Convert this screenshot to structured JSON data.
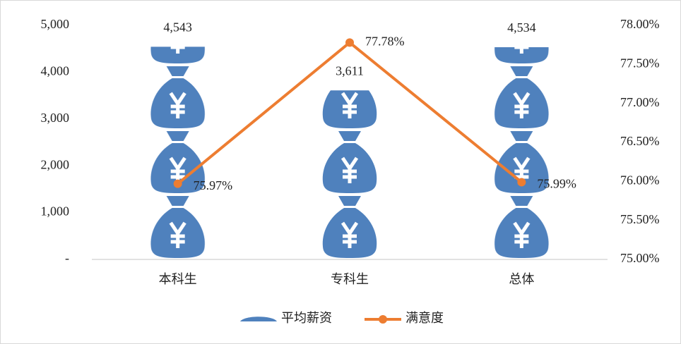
{
  "chart_data": {
    "type": "combo",
    "categories": [
      "本科生",
      "专科生",
      "总体"
    ],
    "series": [
      {
        "name": "平均薪资",
        "type": "bar",
        "color": "#4f81bd",
        "values": [
          4543,
          3611,
          4534
        ],
        "value_labels": [
          "4,543",
          "3,611",
          "4,534"
        ]
      },
      {
        "name": "满意度",
        "type": "line",
        "axis": "y2",
        "color": "#ed7d31",
        "values": [
          75.97,
          77.78,
          75.99
        ],
        "value_labels": [
          "75.97%",
          "77.78%",
          "75.99%"
        ]
      }
    ],
    "ylim": [
      0,
      5000
    ],
    "yticks": [
      {
        "value": 0,
        "label": "-"
      },
      {
        "value": 1000,
        "label": "1,000"
      },
      {
        "value": 2000,
        "label": "2,000"
      },
      {
        "value": 3000,
        "label": "3,000"
      },
      {
        "value": 4000,
        "label": "4,000"
      },
      {
        "value": 5000,
        "label": "5,000"
      }
    ],
    "y2lim": [
      75,
      78
    ],
    "y2ticks": [
      {
        "value": 75,
        "label": "75.00%"
      },
      {
        "value": 75.5,
        "label": "75.50%"
      },
      {
        "value": 76,
        "label": "76.00%"
      },
      {
        "value": 76.5,
        "label": "76.50%"
      },
      {
        "value": 77,
        "label": "77.00%"
      },
      {
        "value": 77.5,
        "label": "77.50%"
      },
      {
        "value": 78,
        "label": "78.00%"
      }
    ],
    "legend": "bottom"
  }
}
